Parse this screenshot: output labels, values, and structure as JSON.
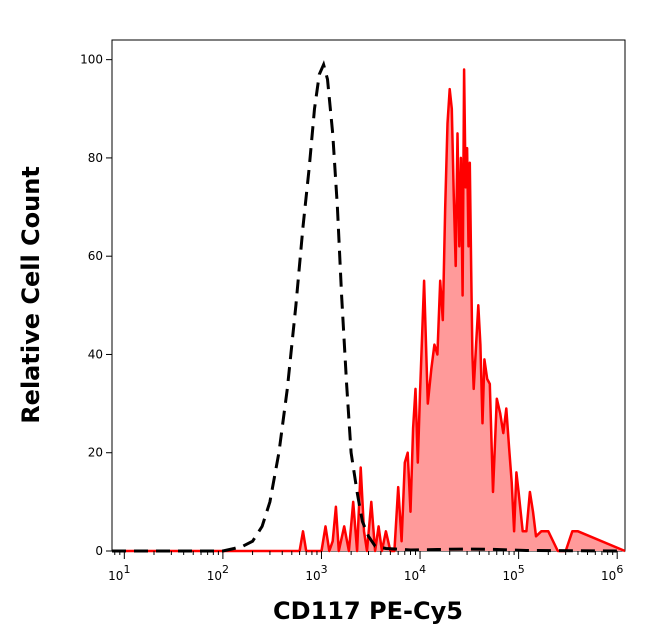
{
  "chart_data": {
    "type": "area",
    "title": "",
    "xlabel": "CD117 PE-Cy5",
    "ylabel": "Relative Cell Count",
    "x_scale": "log",
    "xlim": [
      7.5,
      1200000
    ],
    "ylim": [
      0,
      104
    ],
    "y_ticks": [
      0,
      20,
      40,
      60,
      80,
      100
    ],
    "x_ticks": [
      {
        "value": 10,
        "base": "10",
        "exp": "1"
      },
      {
        "value": 100,
        "base": "10",
        "exp": "2"
      },
      {
        "value": 1000,
        "base": "10",
        "exp": "3"
      },
      {
        "value": 10000,
        "base": "10",
        "exp": "4"
      },
      {
        "value": 100000,
        "base": "10",
        "exp": "5"
      },
      {
        "value": 1000000,
        "base": "10",
        "exp": "6"
      }
    ],
    "grid": false,
    "legend": "none",
    "colors": {
      "stained_line": "#ff0000",
      "stained_fill": "#ff9a9a",
      "control_line": "#000000"
    },
    "series": [
      {
        "role": "isotype-control",
        "style": "dashed",
        "x": [
          7.5,
          100,
          130,
          160,
          200,
          250,
          300,
          370,
          450,
          550,
          650,
          750,
          850,
          950,
          1050,
          1150,
          1300,
          1450,
          1600,
          1800,
          2000,
          2300,
          2600,
          3000,
          3500,
          4500,
          8000,
          15000,
          30000,
          60000,
          120000,
          1200000
        ],
        "y": [
          0,
          0,
          0.5,
          1,
          2,
          5,
          10,
          20,
          33,
          50,
          66,
          78,
          90,
          97,
          99,
          96,
          85,
          70,
          52,
          34,
          20,
          12,
          6,
          3,
          1,
          0.5,
          0.2,
          0.3,
          0.4,
          0.3,
          0.1,
          0
        ]
      },
      {
        "role": "CD117-stained",
        "style": "filled",
        "x": [
          7.5,
          500,
          600,
          650,
          700,
          800,
          1000,
          1100,
          1200,
          1300,
          1400,
          1500,
          1700,
          1900,
          2100,
          2300,
          2500,
          2700,
          2900,
          3200,
          3500,
          3800,
          4100,
          4500,
          5000,
          5500,
          6000,
          6500,
          7000,
          7500,
          8000,
          8500,
          9000,
          9500,
          10000,
          11000,
          12000,
          13000,
          14000,
          15000,
          16000,
          17000,
          18000,
          19000,
          20000,
          21000,
          22000,
          23000,
          24000,
          25000,
          26000,
          27000,
          28000,
          29000,
          30000,
          31000,
          32000,
          33000,
          34000,
          35000,
          37000,
          39000,
          41000,
          43000,
          45000,
          48000,
          51000,
          55000,
          60000,
          65000,
          70000,
          75000,
          80000,
          85000,
          90000,
          95000,
          100000,
          110000,
          120000,
          130000,
          140000,
          150000,
          170000,
          200000,
          250000,
          300000,
          350000,
          400000,
          1200000
        ],
        "y": [
          0,
          0,
          0,
          4,
          0,
          0,
          0,
          5,
          0,
          2,
          9,
          0,
          5,
          0,
          10,
          0,
          17,
          4,
          0,
          10,
          0,
          5,
          0,
          4,
          0,
          0,
          13,
          2,
          18,
          20,
          8,
          25,
          33,
          18,
          32,
          55,
          30,
          37,
          42,
          40,
          55,
          47,
          70,
          87,
          94,
          90,
          72,
          58,
          85,
          62,
          80,
          52,
          98,
          74,
          82,
          62,
          79,
          57,
          40,
          33,
          42,
          50,
          42,
          26,
          39,
          35,
          34,
          12,
          31,
          28,
          24,
          29,
          21,
          14,
          4,
          16,
          12,
          4,
          4,
          12,
          8,
          3,
          4,
          4,
          0,
          0,
          4,
          4,
          0
        ]
      }
    ]
  }
}
